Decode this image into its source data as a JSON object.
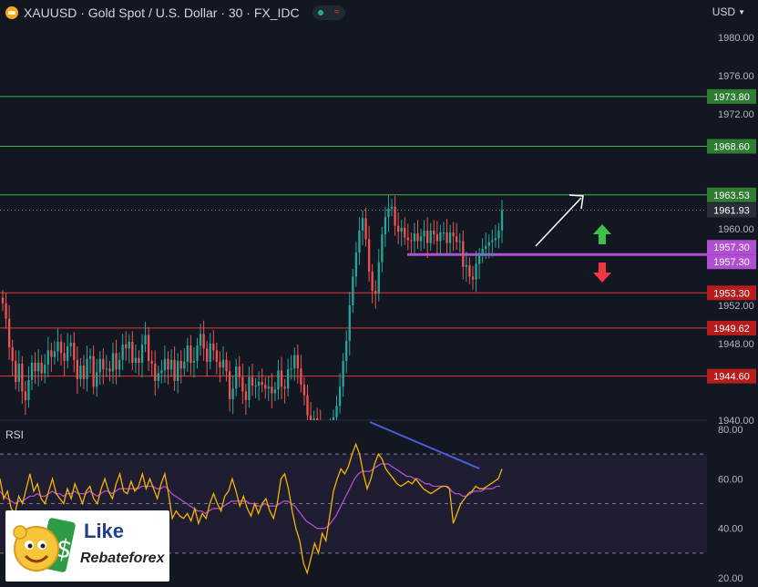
{
  "header": {
    "symbol": "XAUUSD",
    "title": "XAUUSD · Gold Spot / U.S. Dollar · 30 · FX_IDC",
    "currency": "USD"
  },
  "colors": {
    "background": "#131722",
    "up": "#26a69a",
    "down": "#ef5350",
    "resistance_line": "#4caf50",
    "support_line": "#e53935",
    "pivot_line": "#b04fd1",
    "rsi_line": "#f7b500",
    "rsi_ma": "#b04fd1",
    "divergence": "#4a5fdc"
  },
  "rsi_panel": {
    "label": "RSI"
  },
  "logo": {
    "line1": "Like",
    "line2": "Rebateforex"
  },
  "chart_data": [
    {
      "type": "candlestick",
      "title": "XAUUSD · Gold Spot / U.S. Dollar · 30 · FX_IDC",
      "y_range": [
        1940,
        1981.5
      ],
      "y_ticks": [
        "1980.00",
        "1976.00",
        "1972.00",
        "1960.00",
        "1952.00",
        "1948.00",
        "1940.00"
      ],
      "current_price": {
        "value": 1961.93,
        "label": "1961.93"
      },
      "levels": [
        {
          "value": 1973.8,
          "label": "1973.80",
          "kind": "resistance"
        },
        {
          "value": 1968.6,
          "label": "1968.60",
          "kind": "resistance"
        },
        {
          "value": 1963.53,
          "label": "1963.53",
          "kind": "resistance"
        },
        {
          "value": 1957.3,
          "label": "1957.30",
          "kind": "pivot"
        },
        {
          "value": 1957.3,
          "label": "1957.30",
          "kind": "pivot"
        },
        {
          "value": 1953.3,
          "label": "1953.30",
          "kind": "support"
        },
        {
          "value": 1949.62,
          "label": "1949.62",
          "kind": "support"
        },
        {
          "value": 1944.6,
          "label": "1944.60",
          "kind": "support"
        }
      ],
      "close": [
        1952.2,
        1950.6,
        1947.6,
        1946.2,
        1944.0,
        1945.9,
        1943.0,
        1942.1,
        1944.2,
        1946.0,
        1945.1,
        1946.0,
        1944.9,
        1945.8,
        1947.3,
        1946.6,
        1947.2,
        1948.2,
        1947.0,
        1946.2,
        1947.7,
        1948.1,
        1946.3,
        1944.3,
        1945.7,
        1944.3,
        1946.4,
        1946.7,
        1943.5,
        1945.0,
        1946.4,
        1945.3,
        1945.4,
        1945.1,
        1947.0,
        1945.3,
        1946.3,
        1947.9,
        1947.5,
        1948.2,
        1946.0,
        1946.5,
        1946.0,
        1947.9,
        1948.9,
        1946.2,
        1945.9,
        1944.1,
        1944.9,
        1945.2,
        1946.4,
        1945.3,
        1946.3,
        1944.1,
        1946.2,
        1945.4,
        1946.1,
        1947.8,
        1946.0,
        1946.2,
        1947.8,
        1949.0,
        1947.5,
        1946.1,
        1948.0,
        1947.3,
        1946.1,
        1945.5,
        1946.3,
        1945.1,
        1942.2,
        1943.3,
        1945.6,
        1944.5,
        1943.0,
        1942.1,
        1944.5,
        1943.6,
        1943.6,
        1944.0,
        1943.7,
        1943.3,
        1943.5,
        1942.8,
        1943.2,
        1945.2,
        1943.5,
        1943.3,
        1945.3,
        1945.4,
        1946.8,
        1945.4,
        1943.7,
        1942.6,
        1940.5,
        1939.4,
        1940.2,
        1939.7,
        1937.8,
        1938.5,
        1938.6,
        1938.8,
        1940.3,
        1941.5,
        1943.5,
        1946.2,
        1948.3,
        1952.0,
        1955.0,
        1957.5,
        1959.8,
        1961.1,
        1958.9,
        1955.5,
        1953.5,
        1953.2,
        1956.5,
        1959.4,
        1961.2,
        1962.1,
        1962.3,
        1960.3,
        1959.7,
        1960.1,
        1959.1,
        1958.8,
        1958.7,
        1959.5,
        1958.7,
        1959.2,
        1959.8,
        1958.5,
        1959.8,
        1959.4,
        1958.7,
        1959.6,
        1959.6,
        1958.5,
        1959.6,
        1959.2,
        1958.6,
        1958.7,
        1956.0,
        1956.2,
        1955.0,
        1954.7,
        1956.3,
        1957.2,
        1957.9,
        1958.2,
        1958.6,
        1958.8,
        1959.0,
        1959.8,
        1961.9
      ],
      "open": [
        1952.8,
        1952.2,
        1950.6,
        1947.6,
        1946.2,
        1944.0,
        1945.9,
        1943.0,
        1942.1,
        1944.2,
        1946.0,
        1945.1,
        1946.0,
        1944.9,
        1945.8,
        1947.3,
        1946.6,
        1947.2,
        1948.2,
        1947.0,
        1946.2,
        1947.7,
        1948.1,
        1946.3,
        1944.3,
        1945.7,
        1944.3,
        1946.4,
        1946.7,
        1943.5,
        1945.0,
        1946.4,
        1945.3,
        1945.4,
        1945.1,
        1947.0,
        1945.3,
        1946.3,
        1947.9,
        1947.5,
        1948.2,
        1946.0,
        1946.5,
        1946.0,
        1947.9,
        1948.9,
        1946.2,
        1945.9,
        1944.1,
        1944.9,
        1945.2,
        1946.4,
        1945.3,
        1946.3,
        1944.1,
        1946.2,
        1945.4,
        1946.1,
        1947.8,
        1946.0,
        1946.2,
        1947.8,
        1949.0,
        1947.5,
        1946.1,
        1948.0,
        1947.3,
        1946.1,
        1945.5,
        1946.3,
        1945.1,
        1942.2,
        1943.3,
        1945.6,
        1944.5,
        1943.0,
        1942.1,
        1944.5,
        1943.6,
        1943.6,
        1944.0,
        1943.7,
        1943.3,
        1943.5,
        1942.8,
        1943.2,
        1945.2,
        1943.5,
        1943.3,
        1945.3,
        1945.4,
        1946.8,
        1945.4,
        1943.7,
        1942.6,
        1940.5,
        1939.4,
        1940.2,
        1939.7,
        1937.8,
        1938.5,
        1938.6,
        1938.8,
        1940.3,
        1941.5,
        1943.5,
        1946.2,
        1948.3,
        1952.0,
        1955.0,
        1957.5,
        1959.8,
        1961.1,
        1958.9,
        1955.5,
        1953.5,
        1953.2,
        1956.5,
        1959.4,
        1961.2,
        1962.1,
        1962.3,
        1960.3,
        1959.7,
        1960.1,
        1959.1,
        1958.8,
        1958.7,
        1959.5,
        1958.7,
        1959.2,
        1959.8,
        1958.5,
        1959.8,
        1959.4,
        1958.7,
        1959.6,
        1959.6,
        1958.5,
        1959.6,
        1959.2,
        1958.6,
        1958.7,
        1956.0,
        1956.2,
        1955.0,
        1954.7,
        1956.3,
        1957.2,
        1957.9,
        1958.2,
        1958.6,
        1958.8,
        1959.0,
        1959.8
      ],
      "annotations": [
        "white arrow pointing up-right",
        "green up arrow",
        "red down arrow"
      ]
    },
    {
      "type": "line",
      "title": "RSI",
      "y_range": [
        20,
        80
      ],
      "y_ticks": [
        "80.00",
        "60.00",
        "40.00",
        "20.00"
      ],
      "bands": [
        70,
        50,
        30
      ],
      "series": [
        {
          "role": "rsi",
          "values": [
            60,
            52,
            55,
            48,
            46,
            53,
            50,
            56,
            62,
            55,
            58,
            52,
            50,
            55,
            60,
            54,
            52,
            50,
            56,
            52,
            58,
            54,
            50,
            55,
            57,
            52,
            50,
            56,
            60,
            55,
            52,
            58,
            62,
            55,
            54,
            59,
            55,
            57,
            62,
            56,
            60,
            56,
            52,
            58,
            62,
            54,
            44,
            47,
            45,
            44,
            46,
            43,
            48,
            42,
            46,
            44,
            50,
            54,
            50,
            47,
            53,
            55,
            60,
            55,
            49,
            53,
            48,
            45,
            50,
            46,
            50,
            52,
            47,
            44,
            50,
            60,
            62,
            56,
            47,
            40,
            35,
            26,
            22,
            28,
            34,
            30,
            38,
            35,
            45,
            55,
            60,
            64,
            62,
            65,
            70,
            74,
            70,
            62,
            56,
            60,
            66,
            70,
            68,
            64,
            62,
            60,
            58,
            57,
            58,
            59,
            58,
            60,
            58,
            56,
            55,
            54,
            55,
            56,
            57,
            57,
            56,
            42,
            46,
            50,
            52,
            54,
            55,
            57,
            56,
            56,
            57,
            58,
            59,
            60,
            64
          ]
        },
        {
          "role": "ma",
          "values": [
            55,
            53,
            52,
            51,
            50,
            51,
            51,
            52,
            53,
            53,
            54,
            53,
            53,
            54,
            55,
            54,
            54,
            53,
            54,
            54,
            55,
            54,
            54,
            54,
            55,
            54,
            53,
            54,
            55,
            55,
            54,
            55,
            56,
            56,
            56,
            56,
            56,
            56,
            57,
            57,
            57,
            57,
            56,
            56,
            57,
            56,
            54,
            53,
            52,
            51,
            50,
            49,
            48,
            47,
            47,
            46,
            47,
            48,
            48,
            48,
            49,
            50,
            51,
            51,
            51,
            51,
            51,
            50,
            50,
            49,
            49,
            50,
            49,
            49,
            49,
            50,
            51,
            51,
            50,
            49,
            47,
            45,
            43,
            42,
            41,
            40,
            40,
            40,
            41,
            43,
            45,
            48,
            51,
            54,
            57,
            60,
            62,
            63,
            63,
            63,
            64,
            65,
            66,
            66,
            66,
            65,
            64,
            63,
            62,
            61,
            61,
            60,
            60,
            59,
            58,
            58,
            57,
            57,
            57,
            57,
            57,
            55,
            54,
            54,
            53,
            53,
            54,
            55,
            55,
            55,
            56,
            56,
            56,
            57,
            57
          ]
        }
      ],
      "divergence_line": "declining blue trendline over RSI highs"
    }
  ]
}
